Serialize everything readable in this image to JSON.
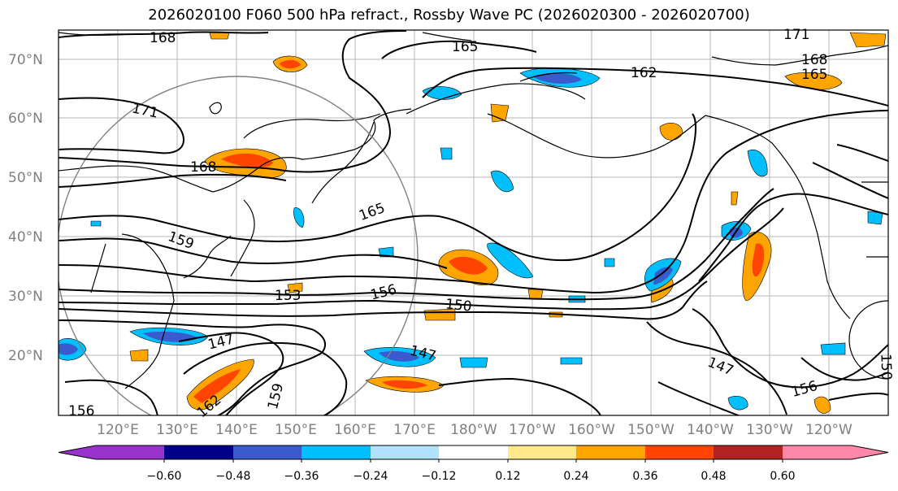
{
  "title": "2026020100 F060 500 hPa refract., Rossby Wave PC (2026020300 - 2026020700)",
  "colors": {
    "coast": "#000000",
    "grid": "#999999",
    "contour": "#000000",
    "circle": "#808080"
  },
  "map": {
    "lat_labels": [
      "70°N",
      "60°N",
      "50°N",
      "40°N",
      "30°N",
      "20°N"
    ],
    "lon_labels": [
      "120°E",
      "130°E",
      "140°E",
      "150°E",
      "160°E",
      "170°E",
      "180°W",
      "170°W",
      "160°W",
      "150°W",
      "140°W",
      "130°W",
      "120°W"
    ],
    "contour_labels": [
      "168",
      "165",
      "171",
      "162",
      "168",
      "165",
      "171",
      "168",
      "165",
      "159",
      "153",
      "156",
      "150",
      "147",
      "147",
      "147",
      "159",
      "162",
      "156",
      "156",
      "150"
    ]
  },
  "colorbar": {
    "colors": [
      "#9932cc",
      "#00008b",
      "#3a5bcd",
      "#00bfff",
      "#b0e2ff",
      "#ffffff",
      "#ffe98a",
      "#ffa500",
      "#ff4500",
      "#b22222",
      "#ff88a8"
    ],
    "tick_labels": [
      "−0.60",
      "−0.48",
      "−0.36",
      "−0.24",
      "−0.12",
      "0.12",
      "0.24",
      "0.36",
      "0.48",
      "0.60"
    ]
  }
}
